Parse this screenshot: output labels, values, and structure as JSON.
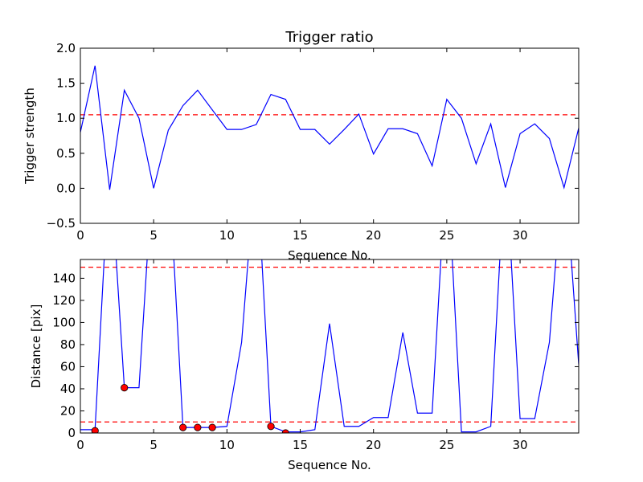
{
  "chart_data": [
    {
      "type": "line",
      "title": "Trigger ratio",
      "xlabel": "Sequence No.",
      "ylabel": "Trigger strength",
      "xlim": [
        0,
        34
      ],
      "ylim": [
        -0.5,
        2.0
      ],
      "xticks": [
        0,
        5,
        10,
        15,
        20,
        25,
        30
      ],
      "yticks": [
        -0.5,
        0.0,
        0.5,
        1.0,
        1.5,
        2.0
      ],
      "ytick_labels": [
        "−0.5",
        "0.0",
        "0.5",
        "1.0",
        "1.5",
        "2.0"
      ],
      "grid": false,
      "series": [
        {
          "color": "#0000ff",
          "x": [
            0,
            1,
            2,
            3,
            4,
            5,
            6,
            7,
            8,
            9,
            10,
            11,
            12,
            13,
            14,
            15,
            16,
            17,
            18,
            19,
            20,
            21,
            22,
            23,
            24,
            25,
            26,
            27,
            28,
            29,
            30,
            31,
            32,
            33,
            34
          ],
          "values": [
            0.8,
            1.75,
            -0.02,
            1.4,
            1.0,
            0.0,
            0.83,
            1.18,
            1.4,
            1.12,
            0.84,
            0.84,
            0.91,
            1.34,
            1.27,
            0.84,
            0.84,
            0.63,
            0.84,
            1.06,
            0.49,
            0.85,
            0.85,
            0.78,
            0.32,
            1.27,
            1.0,
            0.35,
            0.92,
            0.01,
            0.78,
            0.92,
            0.71,
            0.01,
            0.86
          ]
        }
      ],
      "reference_lines": [
        {
          "axis": "y",
          "value": 1.05,
          "color": "#ff0000",
          "style": "dashed"
        }
      ]
    },
    {
      "type": "line",
      "title": "",
      "xlabel": "Sequence No.",
      "ylabel": "Distance [pix]",
      "xlim": [
        0,
        34
      ],
      "ylim": [
        0,
        157
      ],
      "xticks": [
        0,
        5,
        10,
        15,
        20,
        25,
        30
      ],
      "yticks": [
        0,
        20,
        40,
        60,
        80,
        100,
        120,
        140
      ],
      "grid": false,
      "series": [
        {
          "color": "#0000ff",
          "x": [
            0,
            1,
            2,
            3,
            4,
            5,
            6,
            7,
            8,
            9,
            10,
            11,
            12,
            13,
            14,
            15,
            16,
            17,
            18,
            19,
            20,
            21,
            22,
            23,
            24,
            25,
            26,
            27,
            28,
            29,
            30,
            31,
            32,
            33,
            34
          ],
          "values": [
            3,
            3,
            250,
            41,
            41,
            250,
            250,
            5,
            5,
            5,
            6,
            82,
            250,
            6,
            1,
            1,
            3,
            99,
            6,
            6,
            14,
            14,
            91,
            18,
            18,
            250,
            1,
            1,
            6,
            250,
            13,
            13,
            82,
            250,
            62
          ]
        },
        {
          "type": "scatter",
          "color": "#ff0000",
          "x": [
            1,
            3,
            7,
            8,
            9,
            13,
            14
          ],
          "values": [
            2,
            41,
            5,
            5,
            5,
            6,
            0
          ]
        }
      ],
      "reference_lines": [
        {
          "axis": "y",
          "value": 150,
          "color": "#ff0000",
          "style": "dashed"
        },
        {
          "axis": "y",
          "value": 10,
          "color": "#ff0000",
          "style": "dashed"
        }
      ]
    }
  ]
}
